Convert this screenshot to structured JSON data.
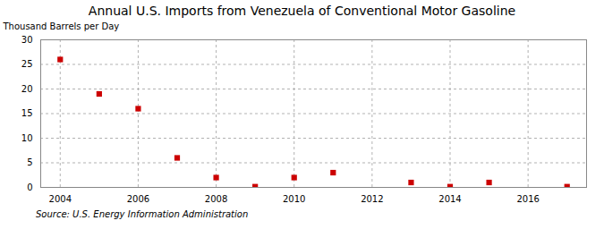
{
  "chart_data": {
    "type": "scatter",
    "title": "Annual U.S. Imports from Venezuela of Conventional Motor Gasoline",
    "ylabel": "Thousand Barrels per Day",
    "annotations": [
      "Source: U.S. Energy Information Administration"
    ],
    "x": [
      2004,
      2005,
      2006,
      2007,
      2008,
      2009,
      2010,
      2011,
      2013,
      2014,
      2015,
      2017
    ],
    "values": [
      26.0,
      19.0,
      16.0,
      6.0,
      2.0,
      0.15,
      2.0,
      3.0,
      1.0,
      0.15,
      1.0,
      0.15
    ],
    "color": "#cc0000",
    "marker": "square",
    "xlim": [
      2003.5,
      2017.5
    ],
    "xticks": [
      2004,
      2006,
      2008,
      2010,
      2012,
      2014,
      2016
    ],
    "ylim": [
      0,
      30
    ],
    "yticks": [
      0,
      5,
      10,
      15,
      20,
      25,
      30
    ],
    "grid": true
  }
}
